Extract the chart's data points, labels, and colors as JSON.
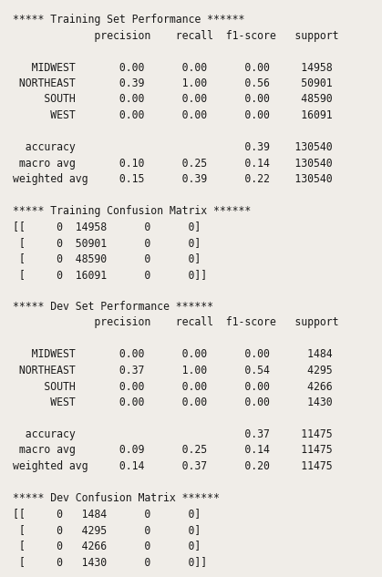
{
  "bg_color": "#f0ede8",
  "text_color": "#1a1a1a",
  "font_family": "monospace",
  "font_size": 8.3,
  "text": "***** Training Set Performance ******\n             precision    recall  f1-score   support\n\n   MIDWEST       0.00      0.00      0.00     14958\n NORTHEAST       0.39      1.00      0.56     50901\n     SOUTH       0.00      0.00      0.00     48590\n      WEST       0.00      0.00      0.00     16091\n\n  accuracy                           0.39    130540\n macro avg       0.10      0.25      0.14    130540\nweighted avg     0.15      0.39      0.22    130540\n\n***** Training Confusion Matrix ******\n[[     0  14958      0      0]\n [     0  50901      0      0]\n [     0  48590      0      0]\n [     0  16091      0      0]]\n\n***** Dev Set Performance ******\n             precision    recall  f1-score   support\n\n   MIDWEST       0.00      0.00      0.00      1484\n NORTHEAST       0.37      1.00      0.54      4295\n     SOUTH       0.00      0.00      0.00      4266\n      WEST       0.00      0.00      0.00      1430\n\n  accuracy                           0.37     11475\n macro avg       0.09      0.25      0.14     11475\nweighted avg     0.14      0.37      0.20     11475\n\n***** Dev Confusion Matrix ******\n[[     0   1484      0      0]\n [     0   4295      0      0]\n [     0   4266      0      0]\n [     0   1430      0      0]]"
}
